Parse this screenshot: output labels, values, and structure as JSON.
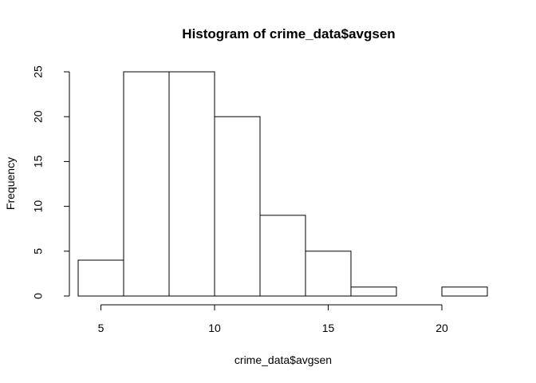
{
  "chart_data": {
    "type": "bar",
    "title": "Histogram of crime_data$avgsen",
    "xlabel": "crime_data$avgsen",
    "ylabel": "Frequency",
    "bins": [
      {
        "start": 4,
        "end": 6,
        "count": 4
      },
      {
        "start": 6,
        "end": 8,
        "count": 25
      },
      {
        "start": 8,
        "end": 10,
        "count": 25
      },
      {
        "start": 10,
        "end": 12,
        "count": 20
      },
      {
        "start": 12,
        "end": 14,
        "count": 9
      },
      {
        "start": 14,
        "end": 16,
        "count": 5
      },
      {
        "start": 16,
        "end": 18,
        "count": 1
      },
      {
        "start": 18,
        "end": 20,
        "count": 0
      },
      {
        "start": 20,
        "end": 22,
        "count": 1
      }
    ],
    "x_ticks": [
      5,
      10,
      15,
      20
    ],
    "y_ticks": [
      0,
      5,
      10,
      15,
      20,
      25
    ],
    "xlim": [
      4,
      22
    ],
    "ylim": [
      0,
      25
    ],
    "grid": false
  }
}
